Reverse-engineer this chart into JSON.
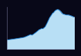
{
  "background_color": "#080818",
  "area_color": "#b8dff5",
  "line_color": "#1a7acc",
  "line_width": 0.7,
  "years": [
    1861,
    1862,
    1863,
    1864,
    1865,
    1866,
    1867,
    1868,
    1869,
    1870,
    1871,
    1872,
    1873,
    1874,
    1875,
    1876,
    1877,
    1878,
    1879,
    1880,
    1881,
    1882,
    1883,
    1884,
    1885,
    1886,
    1887,
    1888,
    1889,
    1890,
    1891,
    1892,
    1893,
    1894,
    1895,
    1896,
    1897,
    1898,
    1899,
    1900,
    1901,
    1902,
    1903,
    1904,
    1905,
    1906,
    1907,
    1908,
    1909,
    1910,
    1911,
    1912,
    1913,
    1914,
    1915,
    1916,
    1917,
    1918,
    1919,
    1920,
    1921,
    1922,
    1923,
    1924,
    1925,
    1926,
    1927,
    1928,
    1929,
    1930,
    1931,
    1932,
    1933,
    1934,
    1935,
    1936,
    1937,
    1938,
    1939,
    1940,
    1941,
    1942,
    1943,
    1944,
    1945,
    1946,
    1947,
    1948,
    1949,
    1950,
    1951,
    1952,
    1953,
    1954,
    1955,
    1956,
    1957,
    1958,
    1959,
    1960,
    1961,
    1962,
    1963,
    1964,
    1965,
    1966,
    1967,
    1968,
    1969,
    1970,
    1971,
    1972,
    1973,
    1974,
    1975,
    1976,
    1977,
    1978,
    1979,
    1980,
    1981,
    1982,
    1983,
    1984,
    1985,
    1986,
    1987,
    1988,
    1989,
    1990,
    1991,
    1992,
    1993,
    1994,
    1995,
    1996,
    1997,
    1998,
    1999,
    2000,
    2001,
    2002,
    2003,
    2004,
    2005,
    2006,
    2007,
    2008,
    2009,
    2010,
    2011,
    2012,
    2013,
    2014,
    2015,
    2016,
    2017,
    2018,
    2019
  ],
  "population": [
    4116,
    4140,
    4163,
    4187,
    4211,
    4236,
    4261,
    4286,
    4311,
    4337,
    4363,
    4389,
    4415,
    4442,
    4469,
    4496,
    4523,
    4551,
    4579,
    4607,
    4636,
    4665,
    4694,
    4724,
    4754,
    4784,
    4814,
    4845,
    4876,
    4907,
    4939,
    4971,
    5003,
    5036,
    5069,
    5102,
    5136,
    5170,
    5204,
    5239,
    5274,
    5344,
    5416,
    5490,
    5566,
    5644,
    5723,
    5804,
    5887,
    5971,
    6058,
    6146,
    6236,
    6329,
    6423,
    6462,
    6502,
    6408,
    6316,
    6282,
    6399,
    6528,
    6660,
    6795,
    6932,
    7073,
    7216,
    7362,
    7511,
    7662,
    7816,
    7973,
    8133,
    8296,
    8461,
    8630,
    8720,
    8812,
    8906,
    9003,
    9101,
    9201,
    9270,
    9200,
    9130,
    9230,
    9390,
    9560,
    9730,
    9900,
    10100,
    10450,
    10810,
    11180,
    11560,
    11950,
    12350,
    12760,
    13180,
    13610,
    14050,
    14320,
    14600,
    14880,
    15170,
    15460,
    15760,
    16060,
    16200,
    16350,
    16490,
    16780,
    17000,
    17200,
    17350,
    17490,
    17600,
    17680,
    17730,
    17750,
    17720,
    17650,
    17540,
    17400,
    17230,
    17040,
    16830,
    16600,
    16360,
    16130,
    15900,
    15820,
    15740,
    15670,
    15600,
    15540,
    15480,
    15430,
    15380,
    15340,
    15300,
    15310,
    15320,
    15330,
    15290,
    15250,
    15200,
    15140,
    15080,
    15010,
    14940,
    14860,
    14780,
    14700,
    14620,
    14540,
    14460,
    14380,
    14300
  ],
  "xlim_min": 1861,
  "xlim_max": 2019,
  "ylim_min": 0,
  "ylim_max": 19000,
  "spine_color": "#666688"
}
